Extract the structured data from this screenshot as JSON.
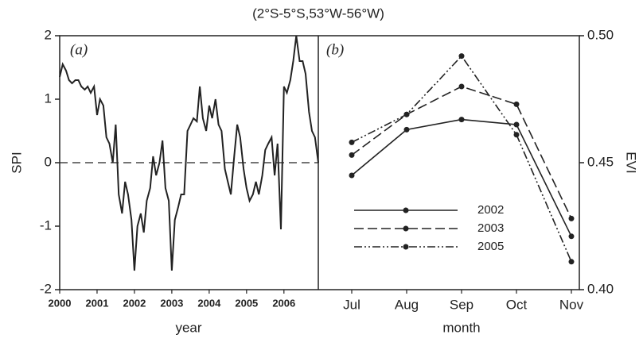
{
  "chart_data": [
    {
      "type": "line",
      "title": "(2°S-5°S,53°W-56°W)",
      "annotation": "(a)",
      "xlabel": "year",
      "ylabel": "SPI",
      "x": [
        2000.0,
        2000.08,
        2000.17,
        2000.25,
        2000.33,
        2000.42,
        2000.5,
        2000.58,
        2000.67,
        2000.75,
        2000.83,
        2000.92,
        2001.0,
        2001.08,
        2001.17,
        2001.25,
        2001.33,
        2001.42,
        2001.5,
        2001.58,
        2001.67,
        2001.75,
        2001.83,
        2001.92,
        2002.0,
        2002.08,
        2002.17,
        2002.25,
        2002.33,
        2002.42,
        2002.5,
        2002.58,
        2002.67,
        2002.75,
        2002.83,
        2002.92,
        2003.0,
        2003.08,
        2003.17,
        2003.25,
        2003.33,
        2003.42,
        2003.5,
        2003.58,
        2003.67,
        2003.75,
        2003.83,
        2003.92,
        2004.0,
        2004.08,
        2004.17,
        2004.25,
        2004.33,
        2004.42,
        2004.5,
        2004.58,
        2004.67,
        2004.75,
        2004.83,
        2004.92,
        2005.0,
        2005.08,
        2005.17,
        2005.25,
        2005.33,
        2005.42,
        2005.5,
        2005.58,
        2005.67,
        2005.75,
        2005.83,
        2005.92,
        2006.0,
        2006.08,
        2006.17,
        2006.25,
        2006.33,
        2006.42,
        2006.5,
        2006.58,
        2006.67,
        2006.75,
        2006.83,
        2006.92
      ],
      "values": [
        1.35,
        1.55,
        1.45,
        1.3,
        1.25,
        1.3,
        1.3,
        1.2,
        1.15,
        1.2,
        1.1,
        1.2,
        0.75,
        1.0,
        0.9,
        0.4,
        0.3,
        0.0,
        0.6,
        -0.5,
        -0.8,
        -0.3,
        -0.5,
        -0.9,
        -1.7,
        -1.0,
        -0.8,
        -1.1,
        -0.6,
        -0.4,
        0.1,
        -0.2,
        0.0,
        0.35,
        -0.4,
        -0.6,
        -1.7,
        -0.9,
        -0.7,
        -0.5,
        -0.5,
        0.5,
        0.6,
        0.7,
        0.65,
        1.2,
        0.7,
        0.5,
        0.9,
        0.7,
        1.0,
        0.6,
        0.5,
        -0.1,
        -0.3,
        -0.5,
        0.1,
        0.6,
        0.4,
        -0.1,
        -0.4,
        -0.6,
        -0.5,
        -0.3,
        -0.5,
        -0.2,
        0.2,
        0.3,
        0.4,
        -0.2,
        0.3,
        -1.05,
        1.2,
        1.1,
        1.3,
        1.6,
        2.0,
        1.6,
        1.6,
        1.4,
        0.8,
        0.5,
        0.4,
        0.0
      ],
      "color": "#222222",
      "reference_line": 0,
      "xlim": [
        2000,
        2006.92
      ],
      "xticks": [
        2000,
        2001,
        2002,
        2003,
        2004,
        2005,
        2006
      ],
      "ylim": [
        -2,
        2
      ],
      "yticks": [
        -2,
        -1,
        0,
        1,
        2
      ]
    },
    {
      "type": "line",
      "annotation": "(b)",
      "xlabel": "month",
      "y2label": "EVI",
      "categories": [
        "Jul",
        "Aug",
        "Sep",
        "Oct",
        "Nov"
      ],
      "series": [
        {
          "name": "2002",
          "color": "#222222",
          "linestyle": "solid",
          "values": [
            0.445,
            0.463,
            0.467,
            0.465,
            0.421
          ],
          "axis": "y2"
        },
        {
          "name": "2003",
          "color": "#222222",
          "linestyle": "dashed",
          "values": [
            0.453,
            0.469,
            0.48,
            0.473,
            0.428
          ],
          "axis": "y2"
        },
        {
          "name": "2005",
          "color": "#222222",
          "linestyle": "dashdotdot",
          "values": [
            0.458,
            0.469,
            0.492,
            0.461,
            0.411
          ],
          "axis": "y2"
        }
      ],
      "legend": "lower left",
      "y2lim": [
        0.4,
        0.5
      ],
      "y2ticks": [
        {
          "value": 0.4,
          "label": "0.40"
        },
        {
          "value": 0.45,
          "label": "0.45"
        },
        {
          "value": 0.5,
          "label": "0.50"
        }
      ]
    }
  ]
}
